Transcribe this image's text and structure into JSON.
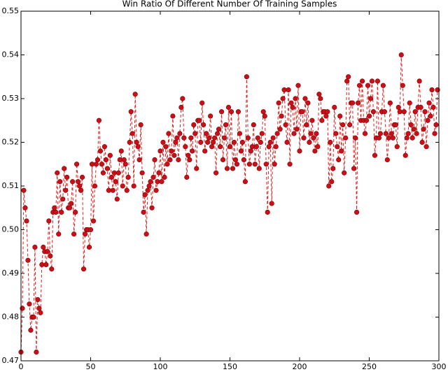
{
  "chart_data": {
    "type": "line",
    "title": "Win Ratio Of Different Number Of Training Samples",
    "x": [
      0,
      1,
      2,
      3,
      4,
      5,
      6,
      7,
      8,
      9,
      10,
      11,
      12,
      13,
      14,
      15,
      16,
      17,
      18,
      19,
      20,
      21,
      22,
      23,
      24,
      25,
      26,
      27,
      28,
      29,
      30,
      31,
      32,
      33,
      34,
      35,
      36,
      37,
      38,
      39,
      40,
      41,
      42,
      43,
      44,
      45,
      46,
      47,
      48,
      49,
      50,
      51,
      52,
      53,
      54,
      55,
      56,
      57,
      58,
      59,
      60,
      61,
      62,
      63,
      64,
      65,
      66,
      67,
      68,
      69,
      70,
      71,
      72,
      73,
      74,
      75,
      76,
      77,
      78,
      79,
      80,
      81,
      82,
      83,
      84,
      85,
      86,
      87,
      88,
      89,
      90,
      91,
      92,
      93,
      94,
      95,
      96,
      97,
      98,
      99,
      100,
      101,
      102,
      103,
      104,
      105,
      106,
      107,
      108,
      109,
      110,
      111,
      112,
      113,
      114,
      115,
      116,
      117,
      118,
      119,
      120,
      121,
      122,
      123,
      124,
      125,
      126,
      127,
      128,
      129,
      130,
      131,
      132,
      133,
      134,
      135,
      136,
      137,
      138,
      139,
      140,
      141,
      142,
      143,
      144,
      145,
      146,
      147,
      148,
      149,
      150,
      151,
      152,
      153,
      154,
      155,
      156,
      157,
      158,
      159,
      160,
      161,
      162,
      163,
      164,
      165,
      166,
      167,
      168,
      169,
      170,
      171,
      172,
      173,
      174,
      175,
      176,
      177,
      178,
      179,
      180,
      181,
      182,
      183,
      184,
      185,
      186,
      187,
      188,
      189,
      190,
      191,
      192,
      193,
      194,
      195,
      196,
      197,
      198,
      199,
      200,
      201,
      202,
      203,
      204,
      205,
      206,
      207,
      208,
      209,
      210,
      211,
      212,
      213,
      214,
      215,
      216,
      217,
      218,
      219,
      220,
      221,
      222,
      223,
      224,
      225,
      226,
      227,
      228,
      229,
      230,
      231,
      232,
      233,
      234,
      235,
      236,
      237,
      238,
      239,
      240,
      241,
      242,
      243,
      244,
      245,
      246,
      247,
      248,
      249,
      250,
      251,
      252,
      253,
      254,
      255,
      256,
      257,
      258,
      259,
      260,
      261,
      262,
      263,
      264,
      265,
      266,
      267,
      268,
      269,
      270,
      271,
      272,
      273,
      274,
      275,
      276,
      277,
      278,
      279,
      280,
      281,
      282,
      283,
      284,
      285,
      286,
      287,
      288,
      289,
      290,
      291,
      292,
      293,
      294,
      295,
      296,
      297,
      298,
      299
    ],
    "series": [
      {
        "color": "#e0201c",
        "values": [
          0.472,
          0.482,
          0.509,
          0.505,
          0.502,
          0.493,
          0.483,
          0.477,
          0.48,
          0.48,
          0.496,
          0.472,
          0.484,
          0.482,
          0.481,
          0.492,
          0.496,
          0.495,
          0.492,
          0.495,
          0.502,
          0.494,
          0.491,
          0.504,
          0.505,
          0.504,
          0.513,
          0.499,
          0.511,
          0.504,
          0.507,
          0.514,
          0.509,
          0.512,
          0.505,
          0.505,
          0.506,
          0.511,
          0.499,
          0.504,
          0.515,
          0.511,
          0.51,
          0.509,
          0.512,
          0.491,
          0.499,
          0.5,
          0.5,
          0.496,
          0.5,
          0.515,
          0.502,
          0.51,
          0.515,
          0.516,
          0.525,
          0.518,
          0.515,
          0.513,
          0.519,
          0.516,
          0.514,
          0.509,
          0.517,
          0.512,
          0.509,
          0.513,
          0.511,
          0.507,
          0.513,
          0.516,
          0.518,
          0.51,
          0.516,
          0.515,
          0.509,
          0.512,
          0.52,
          0.527,
          0.522,
          0.51,
          0.531,
          0.52,
          0.519,
          0.516,
          0.524,
          0.513,
          0.504,
          0.508,
          0.499,
          0.509,
          0.51,
          0.511,
          0.505,
          0.512,
          0.516,
          0.509,
          0.511,
          0.513,
          0.518,
          0.511,
          0.52,
          0.512,
          0.519,
          0.515,
          0.522,
          0.516,
          0.518,
          0.526,
          0.517,
          0.52,
          0.521,
          0.516,
          0.522,
          0.528,
          0.53,
          0.521,
          0.519,
          0.512,
          0.517,
          0.516,
          0.521,
          0.518,
          0.524,
          0.522,
          0.514,
          0.525,
          0.525,
          0.52,
          0.529,
          0.524,
          0.518,
          0.522,
          0.52,
          0.521,
          0.526,
          0.519,
          0.52,
          0.521,
          0.513,
          0.522,
          0.523,
          0.519,
          0.527,
          0.516,
          0.521,
          0.524,
          0.514,
          0.528,
          0.519,
          0.527,
          0.514,
          0.52,
          0.516,
          0.515,
          0.527,
          0.522,
          0.518,
          0.52,
          0.516,
          0.511,
          0.535,
          0.521,
          0.515,
          0.518,
          0.519,
          0.524,
          0.515,
          0.519,
          0.521,
          0.514,
          0.52,
          0.522,
          0.527,
          0.526,
          0.515,
          0.504,
          0.519,
          0.52,
          0.506,
          0.521,
          0.515,
          0.519,
          0.522,
          0.529,
          0.523,
          0.526,
          0.53,
          0.532,
          0.524,
          0.52,
          0.532,
          0.515,
          0.529,
          0.528,
          0.522,
          0.53,
          0.523,
          0.533,
          0.518,
          0.527,
          0.527,
          0.521,
          0.53,
          0.524,
          0.529,
          0.52,
          0.522,
          0.525,
          0.521,
          0.518,
          0.522,
          0.519,
          0.531,
          0.53,
          0.525,
          0.527,
          0.527,
          0.526,
          0.527,
          0.51,
          0.52,
          0.511,
          0.514,
          0.528,
          0.522,
          0.519,
          0.516,
          0.526,
          0.518,
          0.524,
          0.513,
          0.521,
          0.534,
          0.535,
          0.524,
          0.529,
          0.529,
          0.514,
          0.521,
          0.504,
          0.529,
          0.533,
          0.525,
          0.534,
          0.525,
          0.522,
          0.525,
          0.533,
          0.526,
          0.53,
          0.534,
          0.527,
          0.517,
          0.521,
          0.534,
          0.521,
          0.522,
          0.527,
          0.533,
          0.527,
          0.522,
          0.516,
          0.521,
          0.529,
          0.522,
          0.521,
          0.524,
          0.524,
          0.519,
          0.528,
          0.527,
          0.54,
          0.533,
          0.527,
          0.517,
          0.521,
          0.522,
          0.529,
          0.524,
          0.521,
          0.523,
          0.527,
          0.522,
          0.528,
          0.534,
          0.528,
          0.52,
          0.523,
          0.527,
          0.519,
          0.525,
          0.529,
          0.526,
          0.532,
          0.528,
          0.522,
          0.524,
          0.532
        ]
      }
    ],
    "xlim": [
      0,
      300
    ],
    "xticks": [
      0,
      50,
      100,
      150,
      200,
      250,
      300
    ],
    "ylim": [
      0.47,
      0.55
    ],
    "yticks": [
      0.47,
      0.48,
      0.49,
      {
        "value": 0.5,
        "label": "0.50"
      },
      0.51,
      0.52,
      0.53,
      0.54,
      0.55
    ],
    "grid": false
  }
}
